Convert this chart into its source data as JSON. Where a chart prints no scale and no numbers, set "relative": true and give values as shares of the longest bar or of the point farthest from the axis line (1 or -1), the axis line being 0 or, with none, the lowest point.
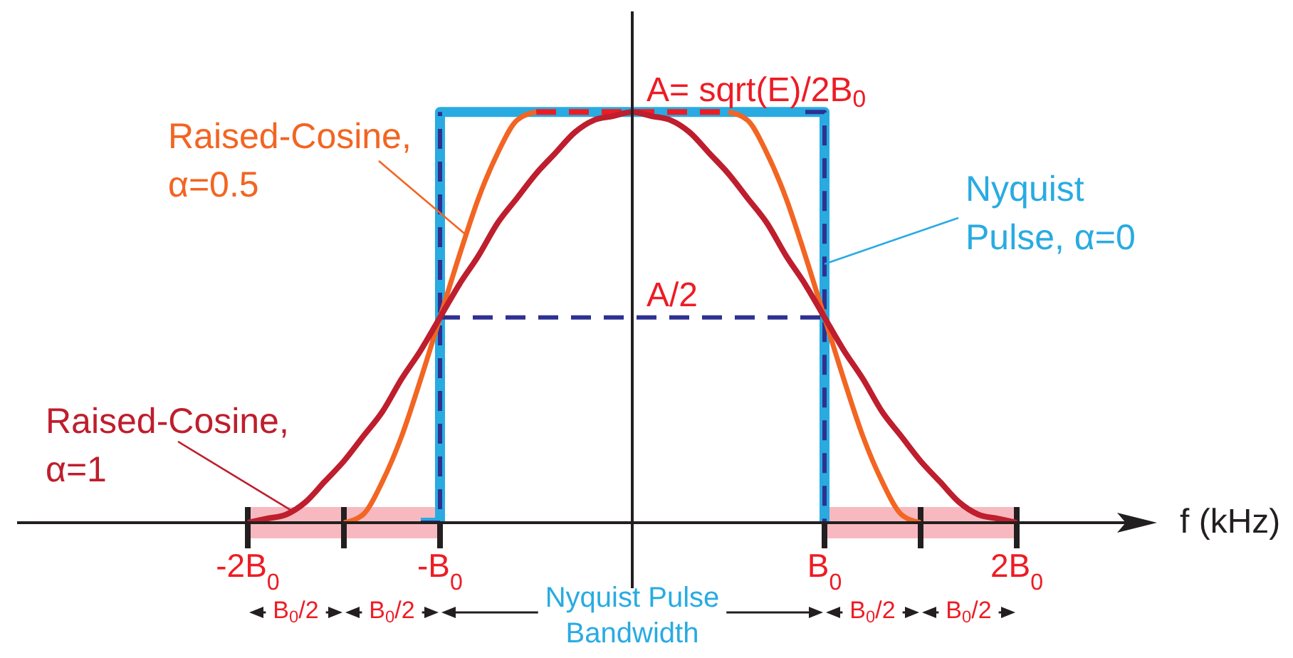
{
  "chart_data": {
    "type": "line",
    "relative": true,
    "xlabel": "f (kHz)",
    "categories": [
      null,
      null,
      null,
      null,
      null,
      null,
      null,
      null,
      null,
      null,
      null,
      null,
      "-2B$_{0}$",
      null,
      null,
      null,
      null,
      null,
      null,
      null,
      null,
      null,
      "-B$_{0}$",
      null,
      null,
      null,
      null,
      null,
      null,
      null,
      null,
      null,
      null,
      null,
      null,
      null,
      null,
      null,
      null,
      null,
      null,
      null,
      "B$_{0}$",
      null,
      null,
      null,
      null,
      null,
      null,
      null,
      null,
      null,
      "2B$_{0}$",
      null,
      null,
      null,
      null,
      null,
      null,
      null
    ],
    "series": [
      {
        "name": "Nyquist Pulse, α=0",
        "type": "step",
        "color": "#29abe2",
        "values": [
          null,
          null,
          null,
          null,
          null,
          null,
          null,
          null,
          null,
          null,
          null,
          null,
          null,
          null,
          null,
          null,
          null,
          null,
          null,
          null,
          null,
          0,
          1,
          1,
          1,
          1,
          1,
          1,
          1,
          1,
          1,
          1,
          1,
          1,
          1,
          1,
          1,
          1,
          1,
          1,
          1,
          1,
          0,
          null,
          null,
          null,
          null,
          null,
          null,
          null,
          null,
          null,
          null,
          null,
          null,
          null,
          null,
          null,
          null,
          null
        ]
      },
      {
        "type": "step",
        "color": "#2e3192",
        "line_style": "dashed",
        "values": [
          null,
          null,
          null,
          null,
          null,
          null,
          null,
          null,
          null,
          null,
          null,
          null,
          null,
          null,
          null,
          null,
          null,
          null,
          null,
          null,
          null,
          0,
          1,
          null,
          null,
          null,
          null,
          null,
          null,
          null,
          null,
          null,
          null,
          null,
          null,
          null,
          null,
          null,
          null,
          null,
          null,
          1,
          0,
          null,
          null,
          null,
          null,
          null,
          null,
          null,
          null,
          null,
          null,
          null,
          null,
          null,
          null,
          null,
          null,
          null
        ]
      },
      {
        "color": "#2e3192",
        "line_style": "dashed",
        "values": [
          null,
          null,
          null,
          null,
          null,
          null,
          null,
          null,
          null,
          null,
          null,
          null,
          null,
          null,
          null,
          null,
          null,
          null,
          null,
          null,
          null,
          null,
          0.5,
          0.5,
          0.5,
          0.5,
          0.5,
          0.5,
          0.5,
          0.5,
          0.5,
          0.5,
          0.5,
          0.5,
          0.5,
          0.5,
          0.5,
          0.5,
          0.5,
          0.5,
          0.5,
          0.5,
          0.5,
          null,
          null,
          null,
          null,
          null,
          null,
          null,
          null,
          null,
          null,
          null,
          null,
          null,
          null,
          null,
          null,
          null
        ]
      },
      {
        "color": "#ed1c24",
        "line_style": "dashed",
        "values": [
          null,
          null,
          null,
          null,
          null,
          null,
          null,
          null,
          null,
          null,
          null,
          null,
          null,
          null,
          null,
          null,
          null,
          null,
          null,
          null,
          null,
          null,
          null,
          null,
          null,
          null,
          null,
          1,
          1,
          1,
          1,
          1,
          1,
          1,
          1,
          1,
          1,
          1,
          null,
          null,
          null,
          null,
          null,
          null,
          null,
          null,
          null,
          null,
          null,
          null,
          null,
          null,
          null,
          null,
          null,
          null,
          null,
          null,
          null,
          null
        ]
      },
      {
        "name": "Raised-Cosine, α=0.5",
        "color": "#f26522",
        "values": [
          null,
          null,
          null,
          null,
          null,
          null,
          null,
          null,
          null,
          null,
          null,
          null,
          null,
          null,
          null,
          null,
          null,
          0,
          0.02,
          0.1,
          0.21,
          0.35,
          0.5,
          0.65,
          0.79,
          0.9,
          0.98,
          1,
          null,
          null,
          null,
          null,
          null,
          null,
          null,
          null,
          null,
          1,
          0.98,
          0.9,
          0.79,
          0.65,
          0.5,
          0.35,
          0.21,
          0.1,
          0.02,
          0,
          null,
          null,
          null,
          null,
          null,
          null,
          null,
          null,
          null,
          null,
          null,
          null
        ]
      },
      {
        "name": "Raised-Cosine, α=1",
        "color": "#be1e2d",
        "values": [
          null,
          null,
          null,
          null,
          null,
          null,
          null,
          null,
          null,
          null,
          null,
          null,
          0,
          0.01,
          0.02,
          0.05,
          0.1,
          0.15,
          0.21,
          0.27,
          0.35,
          0.42,
          0.5,
          0.58,
          0.65,
          0.73,
          0.79,
          0.85,
          0.9,
          0.95,
          0.98,
          0.99,
          1,
          0.99,
          0.98,
          0.95,
          0.9,
          0.85,
          0.79,
          0.73,
          0.65,
          0.58,
          0.5,
          0.42,
          0.35,
          0.27,
          0.21,
          0.15,
          0.1,
          0.05,
          0.02,
          0.01,
          0,
          null,
          null,
          null,
          null,
          null,
          null,
          null
        ]
      }
    ],
    "annotations": [
      {
        "text": "A= sqrt(E)/2B$_{0}$",
        "y": 1
      },
      {
        "text": "A/2",
        "y": 0.5
      },
      "B$_{0}$/2",
      "B$_{0}$/2",
      "Nyquist Pulse Bandwidth",
      "B$_{0}$/2",
      "B$_{0}$/2"
    ]
  }
}
